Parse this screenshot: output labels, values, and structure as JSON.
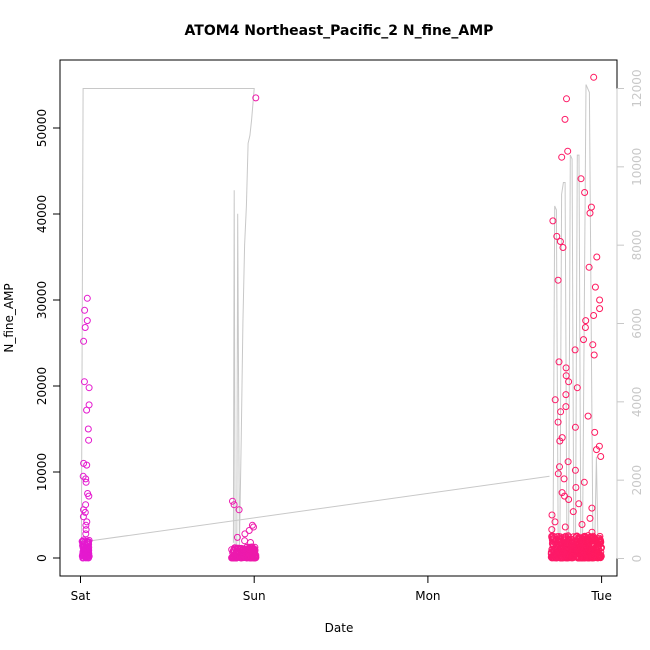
{
  "chart_data": {
    "type": "scatter",
    "title": "ATOM4 Northeast_Pacific_2 N_fine_AMP",
    "xlabel": "Date",
    "ylabel": "N_fine_AMP",
    "x_ticks": [
      "Sat",
      "Sun",
      "Mon",
      "Tue"
    ],
    "y_ticks": [
      0,
      10000,
      20000,
      30000,
      40000,
      50000
    ],
    "y_range": [
      0,
      55000
    ],
    "y2_ticks": [
      0,
      2000,
      4000,
      6000,
      8000,
      10000,
      12000
    ],
    "y2_range": [
      0,
      12100
    ],
    "x_range_days": [
      -0.04,
      3.05
    ],
    "grid": false,
    "legend": "none",
    "colors": {
      "points_start": "#e41ad0",
      "points_end": "#ff1a5e",
      "secondary_line": "#c8c8c8",
      "axis": "#000000",
      "secondary_axis": "#c8c8c8"
    },
    "series": [
      {
        "axis": "left",
        "kind": "points",
        "clusters": [
          {
            "x_start": 0.01,
            "x_end": 0.05,
            "count": 80,
            "base_max": 2200,
            "outliers": [
              30200,
              28800,
              27600,
              26800,
              25200,
              20500,
              19800,
              17800,
              17200,
              15000,
              13700,
              11000,
              10800,
              9500,
              9200,
              8800,
              7500,
              7200,
              6200,
              5600,
              5300,
              4800,
              4200,
              3800,
              3300,
              2800
            ]
          },
          {
            "x_start": 0.87,
            "x_end": 1.01,
            "count": 180,
            "base_max": 1300,
            "outliers": [
              53500,
              6600,
              6200,
              5600,
              3800,
              3600,
              3200,
              2800,
              2400,
              2000,
              1800
            ]
          },
          {
            "x_start": 2.71,
            "x_end": 3.0,
            "count": 450,
            "base_max": 2600,
            "outliers": [
              55900,
              53400,
              51000,
              47300,
              46600,
              44100,
              42500,
              40800,
              40100,
              39200,
              37400,
              36800,
              36100,
              35000,
              33800,
              32300,
              31500,
              30000,
              29000,
              28200,
              27600,
              26800,
              25400,
              24800,
              24200,
              23600,
              22800,
              22100,
              21200,
              20500,
              19800,
              19000,
              18400,
              17600,
              17000,
              16500,
              15800,
              15200,
              14600,
              14000,
              13600,
              13000,
              12600,
              11800,
              11200,
              10600,
              10200,
              9800,
              9200,
              8800,
              8200,
              7600,
              7200,
              6800,
              6300,
              5800,
              5400,
              5000,
              4600,
              4200,
              3900,
              3600,
              3300,
              3000
            ]
          }
        ]
      },
      {
        "axis": "right",
        "kind": "line",
        "points": [
          [
            0.005,
            420
          ],
          [
            0.015,
            12000
          ],
          [
            0.05,
            12000
          ],
          [
            0.9,
            12000
          ],
          [
            1.0,
            12000
          ],
          [
            0.985,
            11200
          ],
          [
            0.975,
            10800
          ],
          [
            0.965,
            10600
          ],
          [
            0.955,
            9000
          ],
          [
            0.945,
            8000
          ],
          [
            0.935,
            6000
          ],
          [
            0.925,
            3000
          ],
          [
            0.915,
            300
          ],
          [
            0.905,
            8800
          ],
          [
            0.9,
            400
          ],
          [
            0.89,
            200
          ],
          [
            0.885,
            9400
          ],
          [
            0.88,
            400
          ]
        ],
        "segments": [
          [
            [
              0.01,
              420
            ],
            [
              2.7,
              2100
            ]
          ],
          [
            [
              2.72,
              150
            ],
            [
              2.73,
              9000
            ],
            [
              2.74,
              8900
            ],
            [
              2.75,
              250
            ]
          ],
          [
            [
              2.76,
              300
            ],
            [
              2.77,
              9300
            ],
            [
              2.78,
              9600
            ],
            [
              2.79,
              9600
            ],
            [
              2.8,
              350
            ]
          ],
          [
            [
              2.81,
              250
            ],
            [
              2.82,
              10300
            ],
            [
              2.83,
              10200
            ],
            [
              2.84,
              300
            ]
          ],
          [
            [
              2.85,
              350
            ],
            [
              2.86,
              10300
            ],
            [
              2.87,
              10300
            ],
            [
              2.88,
              400
            ]
          ],
          [
            [
              2.89,
              300
            ],
            [
              2.91,
              12100
            ],
            [
              2.93,
              11900
            ],
            [
              2.95,
              400
            ]
          ],
          [
            [
              2.96,
              350
            ],
            [
              2.97,
              2600
            ],
            [
              2.98,
              200
            ]
          ]
        ]
      }
    ]
  }
}
